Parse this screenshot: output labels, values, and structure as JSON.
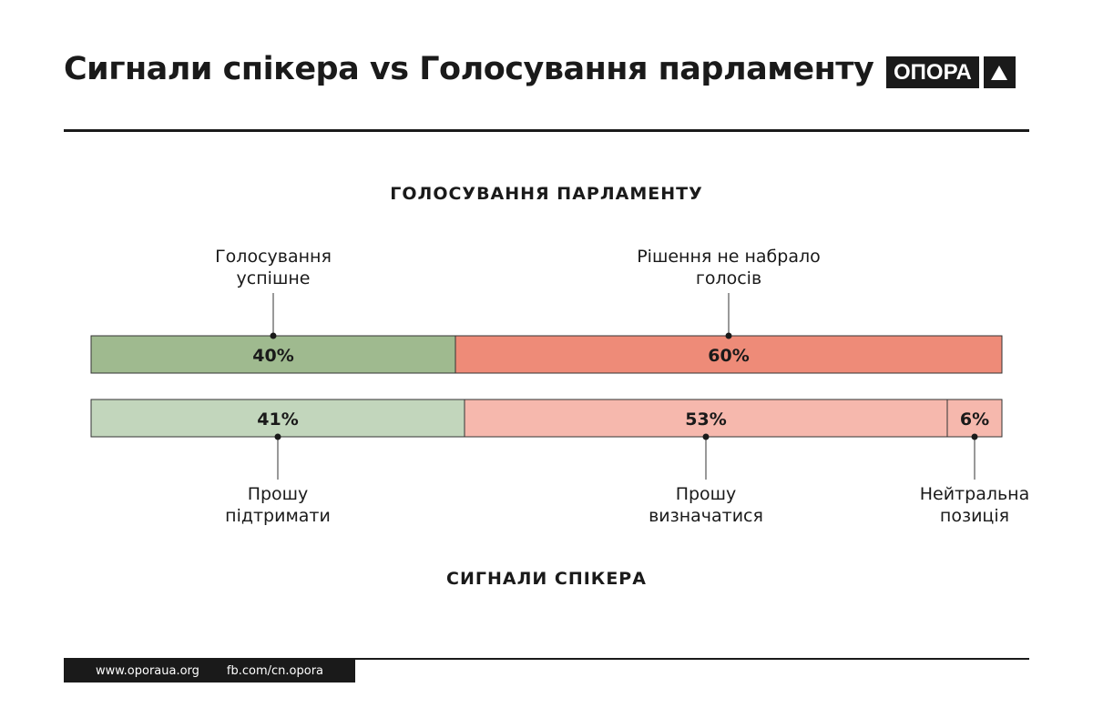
{
  "title": "Сигнали спікера vs Голосування парламенту",
  "logo": "ОПОРА",
  "footer": {
    "site": "www.oporaua.org",
    "fb": "fb.com/cn.opora"
  },
  "chart_data": {
    "type": "bar",
    "stacked": true,
    "orientation": "horizontal",
    "series": [
      {
        "name": "ГОЛОСУВАННЯ ПАРЛАМЕНТУ",
        "segments": [
          {
            "label": "Голосування успішне",
            "value": 40,
            "color": "#9fba8f"
          },
          {
            "label": "Рішення не набрало голосів",
            "value": 60,
            "color": "#ee8b78"
          }
        ]
      },
      {
        "name": "СИГНАЛИ СПІКЕРА",
        "segments": [
          {
            "label": "Прошу підтримати",
            "value": 41,
            "color": "#c2d6bc"
          },
          {
            "label": "Прошу визначатися",
            "value": 53,
            "color": "#f6b8ad"
          },
          {
            "label": "Нейтральна позиція",
            "value": 6,
            "color": "#f6b8ad"
          }
        ]
      }
    ]
  },
  "labels": {
    "top": [
      [
        "Голосування",
        "успішне"
      ],
      [
        "Рішення не набрало",
        "голосів"
      ]
    ],
    "bottom": [
      [
        "Прошу",
        "підтримати"
      ],
      [
        "Прошу",
        "визначатися"
      ],
      [
        "Нейтральна",
        "позиція"
      ]
    ]
  }
}
